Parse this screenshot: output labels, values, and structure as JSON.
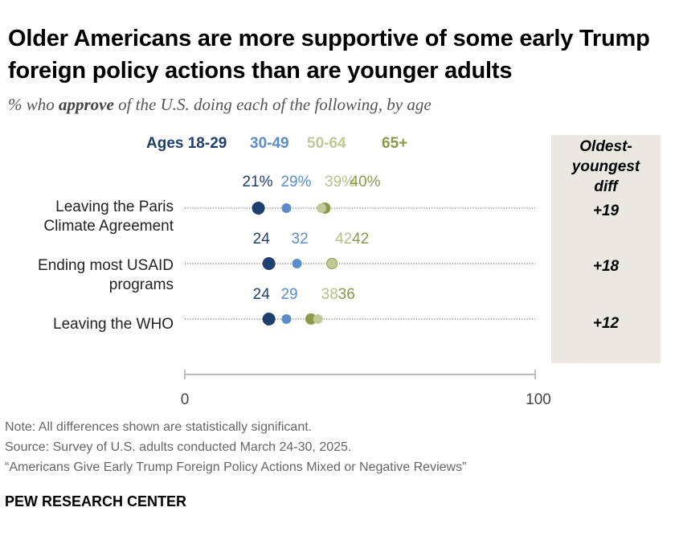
{
  "title": "Older Americans are more supportive of some early Trump foreign policy actions than are younger adults",
  "subtitle": {
    "pre": "% who ",
    "bold": "approve",
    "post": " of the U.S. doing each of the following, by age"
  },
  "diff_header": [
    "Oldest-",
    "youngest",
    "diff"
  ],
  "axis": {
    "min_label": "0",
    "max_label": "100"
  },
  "notes": {
    "note": "Note: All differences shown are statistically significant.",
    "source": "Source: Survey of U.S. adults conducted March 24-30, 2025.",
    "report": "“Americans Give Early Trump Foreign Policy Actions Mixed or Negative Reviews”"
  },
  "brand": "PEW RESEARCH CENTER",
  "colors": {
    "ages_18_29": "#1f3f6e",
    "ages_30_49": "#5b8ec9",
    "ages_50_64": "#c1c99a",
    "ages_65_plus": "#8a9a4a",
    "diff_panel": "#ebe8e1"
  },
  "chart_data": {
    "type": "dot",
    "xlim": [
      0,
      100
    ],
    "legend": [
      {
        "label": "Ages 18-29",
        "color": "#1f3f6e"
      },
      {
        "label": "30-49",
        "color": "#5b8ec9"
      },
      {
        "label": "50-64",
        "color": "#c1c99a"
      },
      {
        "label": "65+",
        "color": "#8a9a4a"
      }
    ],
    "categories": [
      "Leaving the Paris Climate Agreement",
      "Ending most USAID programs",
      "Leaving the WHO"
    ],
    "category_lines": [
      [
        "Leaving the Paris",
        "Climate Agreement"
      ],
      [
        "Ending most USAID",
        "programs"
      ],
      [
        "Leaving the WHO"
      ]
    ],
    "series": [
      {
        "name": "Ages 18-29",
        "values": [
          21,
          24,
          24
        ],
        "labels": [
          "21%",
          "24",
          "24"
        ]
      },
      {
        "name": "30-49",
        "values": [
          29,
          32,
          29
        ],
        "labels": [
          "29%",
          "32",
          "29"
        ]
      },
      {
        "name": "50-64",
        "values": [
          39,
          42,
          38
        ],
        "labels": [
          "39%",
          "42",
          "38"
        ]
      },
      {
        "name": "65+",
        "values": [
          40,
          42,
          36
        ],
        "labels": [
          "40%",
          "42",
          "36"
        ]
      }
    ],
    "diff": [
      "+19",
      "+18",
      "+12"
    ]
  }
}
